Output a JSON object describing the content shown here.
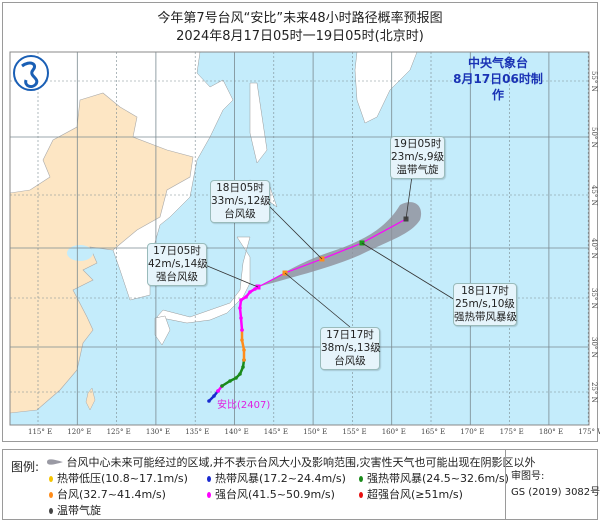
{
  "header": {
    "title": "今年第7号台风“安比”未来48小时路径概率预报图",
    "subtitle": "2024年8月17日05时一19日05时(北京时)",
    "agency": "中央气象台",
    "issued": "8月17日06时制作"
  },
  "colors": {
    "ocean": "#c4ecfb",
    "china_land": "#fde6c4",
    "other_land": "#ffffff",
    "cone": "#8e8e9a",
    "track": "#ff00ff",
    "agency_text": "#1a33b5"
  },
  "map": {
    "storm_label": "安比(2407)",
    "lon_ticks": [
      "115° E",
      "120° E",
      "125° E",
      "130° E",
      "135° E",
      "140° E",
      "145° E",
      "150° E",
      "155° E",
      "160° E",
      "165° E",
      "170° E",
      "175° E",
      "180° E",
      "175° W"
    ],
    "lat_ticks": [
      "55° N",
      "50° N",
      "45° N",
      "40° N",
      "35° N",
      "30° N",
      "25° N"
    ],
    "inner_lat_labels": [
      "55",
      "50",
      "40",
      "35",
      "30",
      "25"
    ],
    "forecast_points": [
      {
        "time": "17日05时",
        "wind": "42m/s,14级",
        "level": "强台风级",
        "color": "#ff00ff"
      },
      {
        "time": "17日17时",
        "wind": "38m/s,13级",
        "level": "台风级",
        "color": "#ff8c1a"
      },
      {
        "time": "18日05时",
        "wind": "33m/s,12级",
        "level": "台风级",
        "color": "#ff8c1a"
      },
      {
        "time": "18日17时",
        "wind": "25m/s,10级",
        "level": "强热带风暴级",
        "color": "#1a9a1a"
      },
      {
        "time": "19日05时",
        "wind": "23m/s,9级",
        "level": "温带气旋",
        "color": "#444444"
      }
    ]
  },
  "legend": {
    "title": "图例:",
    "cone_desc": "台风中心未来可能经过的区域,并不表示台风大小及影响范围,灾害性天气也可能出现在阴影区以外",
    "items": [
      {
        "label": "热带低压(10.8~17.1m/s)",
        "color": "#f5c400"
      },
      {
        "label": "热带风暴(17.2~24.4m/s)",
        "color": "#1a2ad0"
      },
      {
        "label": "强热带风暴(24.5~32.6m/s)",
        "color": "#1a8a1a"
      },
      {
        "label": "台风(32.7~41.4m/s)",
        "color": "#ff8c1a"
      },
      {
        "label": "强台风(41.5~50.9m/s)",
        "color": "#ff00ff"
      },
      {
        "label": "超强台风(≥51m/s)",
        "color": "#e81010"
      },
      {
        "label": "温带气旋",
        "color": "#444444"
      }
    ],
    "approval_label": "审图号:",
    "approval_number": "GS (2019) 3082号"
  }
}
